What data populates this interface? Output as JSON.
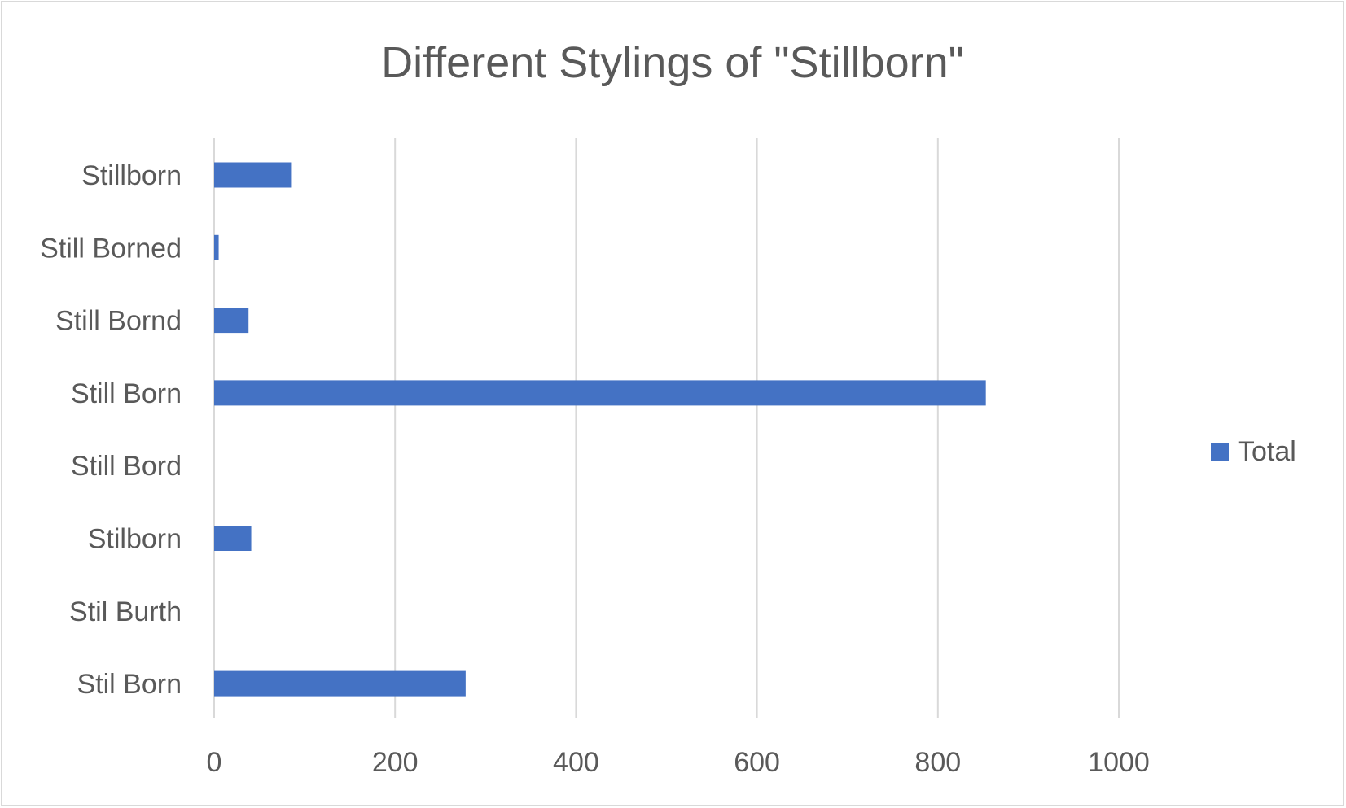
{
  "chart_data": {
    "type": "bar",
    "orientation": "horizontal",
    "title": "Different Stylings of \"Stillborn\"",
    "categories": [
      "Stillborn",
      "Still Borned",
      "Still Bornd",
      "Still Born",
      "Still Bord",
      "Stilborn",
      "Stil Burth",
      "Stil Born"
    ],
    "series": [
      {
        "name": "Total",
        "color": "#4472c4",
        "values": [
          85,
          5,
          38,
          853,
          0,
          41,
          0,
          278
        ]
      }
    ],
    "xlim": [
      0,
      1000
    ],
    "xticks": [
      0,
      200,
      400,
      600,
      800,
      1000
    ],
    "xtick_labels": [
      "0",
      "200",
      "400",
      "600",
      "800",
      "1000"
    ],
    "grid": "vertical",
    "legend_position": "right"
  }
}
